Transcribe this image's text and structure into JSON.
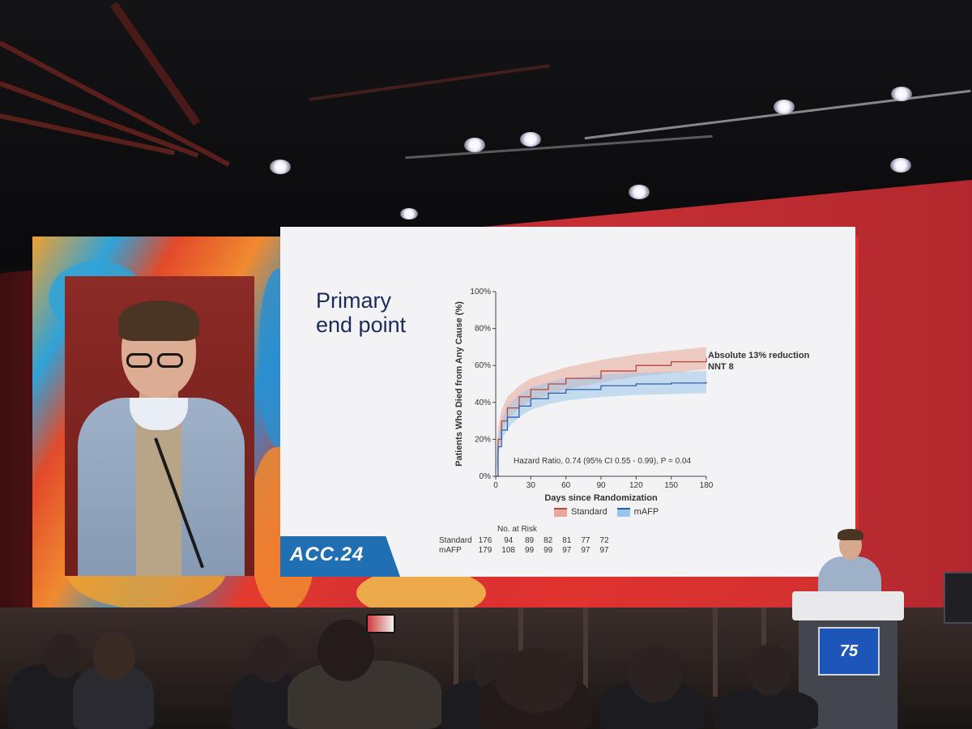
{
  "slide": {
    "title_line1": "Primary",
    "title_line2": "end point",
    "logo_text": "ACC.24"
  },
  "chart_data": {
    "type": "line",
    "xlabel": "Days since Randomization",
    "ylabel": "Patients Who Died from Any Cause (%)",
    "xlim": [
      0,
      180
    ],
    "ylim": [
      0,
      100
    ],
    "x_ticks": [
      0,
      30,
      60,
      90,
      120,
      150,
      180
    ],
    "y_ticks": [
      "0%",
      "20%",
      "40%",
      "60%",
      "80%",
      "100%"
    ],
    "x": [
      0,
      2,
      5,
      10,
      20,
      30,
      45,
      60,
      90,
      120,
      150,
      180
    ],
    "series": [
      {
        "name": "Standard",
        "color": "#b5473c",
        "band_color": "#e8a898",
        "values": [
          0,
          20,
          30,
          37,
          43,
          47,
          50,
          53,
          57,
          60,
          62,
          64
        ],
        "lower": [
          0,
          14,
          24,
          31,
          37,
          41,
          44,
          47,
          51,
          54,
          56,
          58
        ],
        "upper": [
          0,
          26,
          36,
          43,
          49,
          53,
          56,
          59,
          63,
          66,
          68,
          70
        ]
      },
      {
        "name": "mAFP",
        "color": "#2f5fae",
        "band_color": "#9cc4ea",
        "values": [
          0,
          16,
          25,
          32,
          38,
          42,
          45,
          47,
          49,
          50,
          50.5,
          51
        ],
        "lower": [
          0,
          11,
          19,
          26,
          32,
          36,
          39,
          41,
          43,
          44,
          44.5,
          45
        ],
        "upper": [
          0,
          21,
          31,
          38,
          44,
          48,
          51,
          53,
          55,
          56,
          56.5,
          57
        ]
      }
    ],
    "annotation_line1": "Absolute 13% reduction",
    "annotation_line2": "NNT 8",
    "hazard_ratio_text": "Hazard Ratio, 0.74 (95% CI 0.55 - 0.99), P = 0.04",
    "legend_placement": "bottom",
    "risk_table": {
      "title": "No. at Risk",
      "rows": [
        {
          "label": "Standard",
          "values": [
            176,
            94,
            89,
            82,
            81,
            77,
            72
          ]
        },
        {
          "label": "mAFP",
          "values": [
            179,
            108,
            99,
            99,
            97,
            97,
            97
          ]
        }
      ]
    }
  },
  "podium": {
    "sign_text": "75"
  }
}
